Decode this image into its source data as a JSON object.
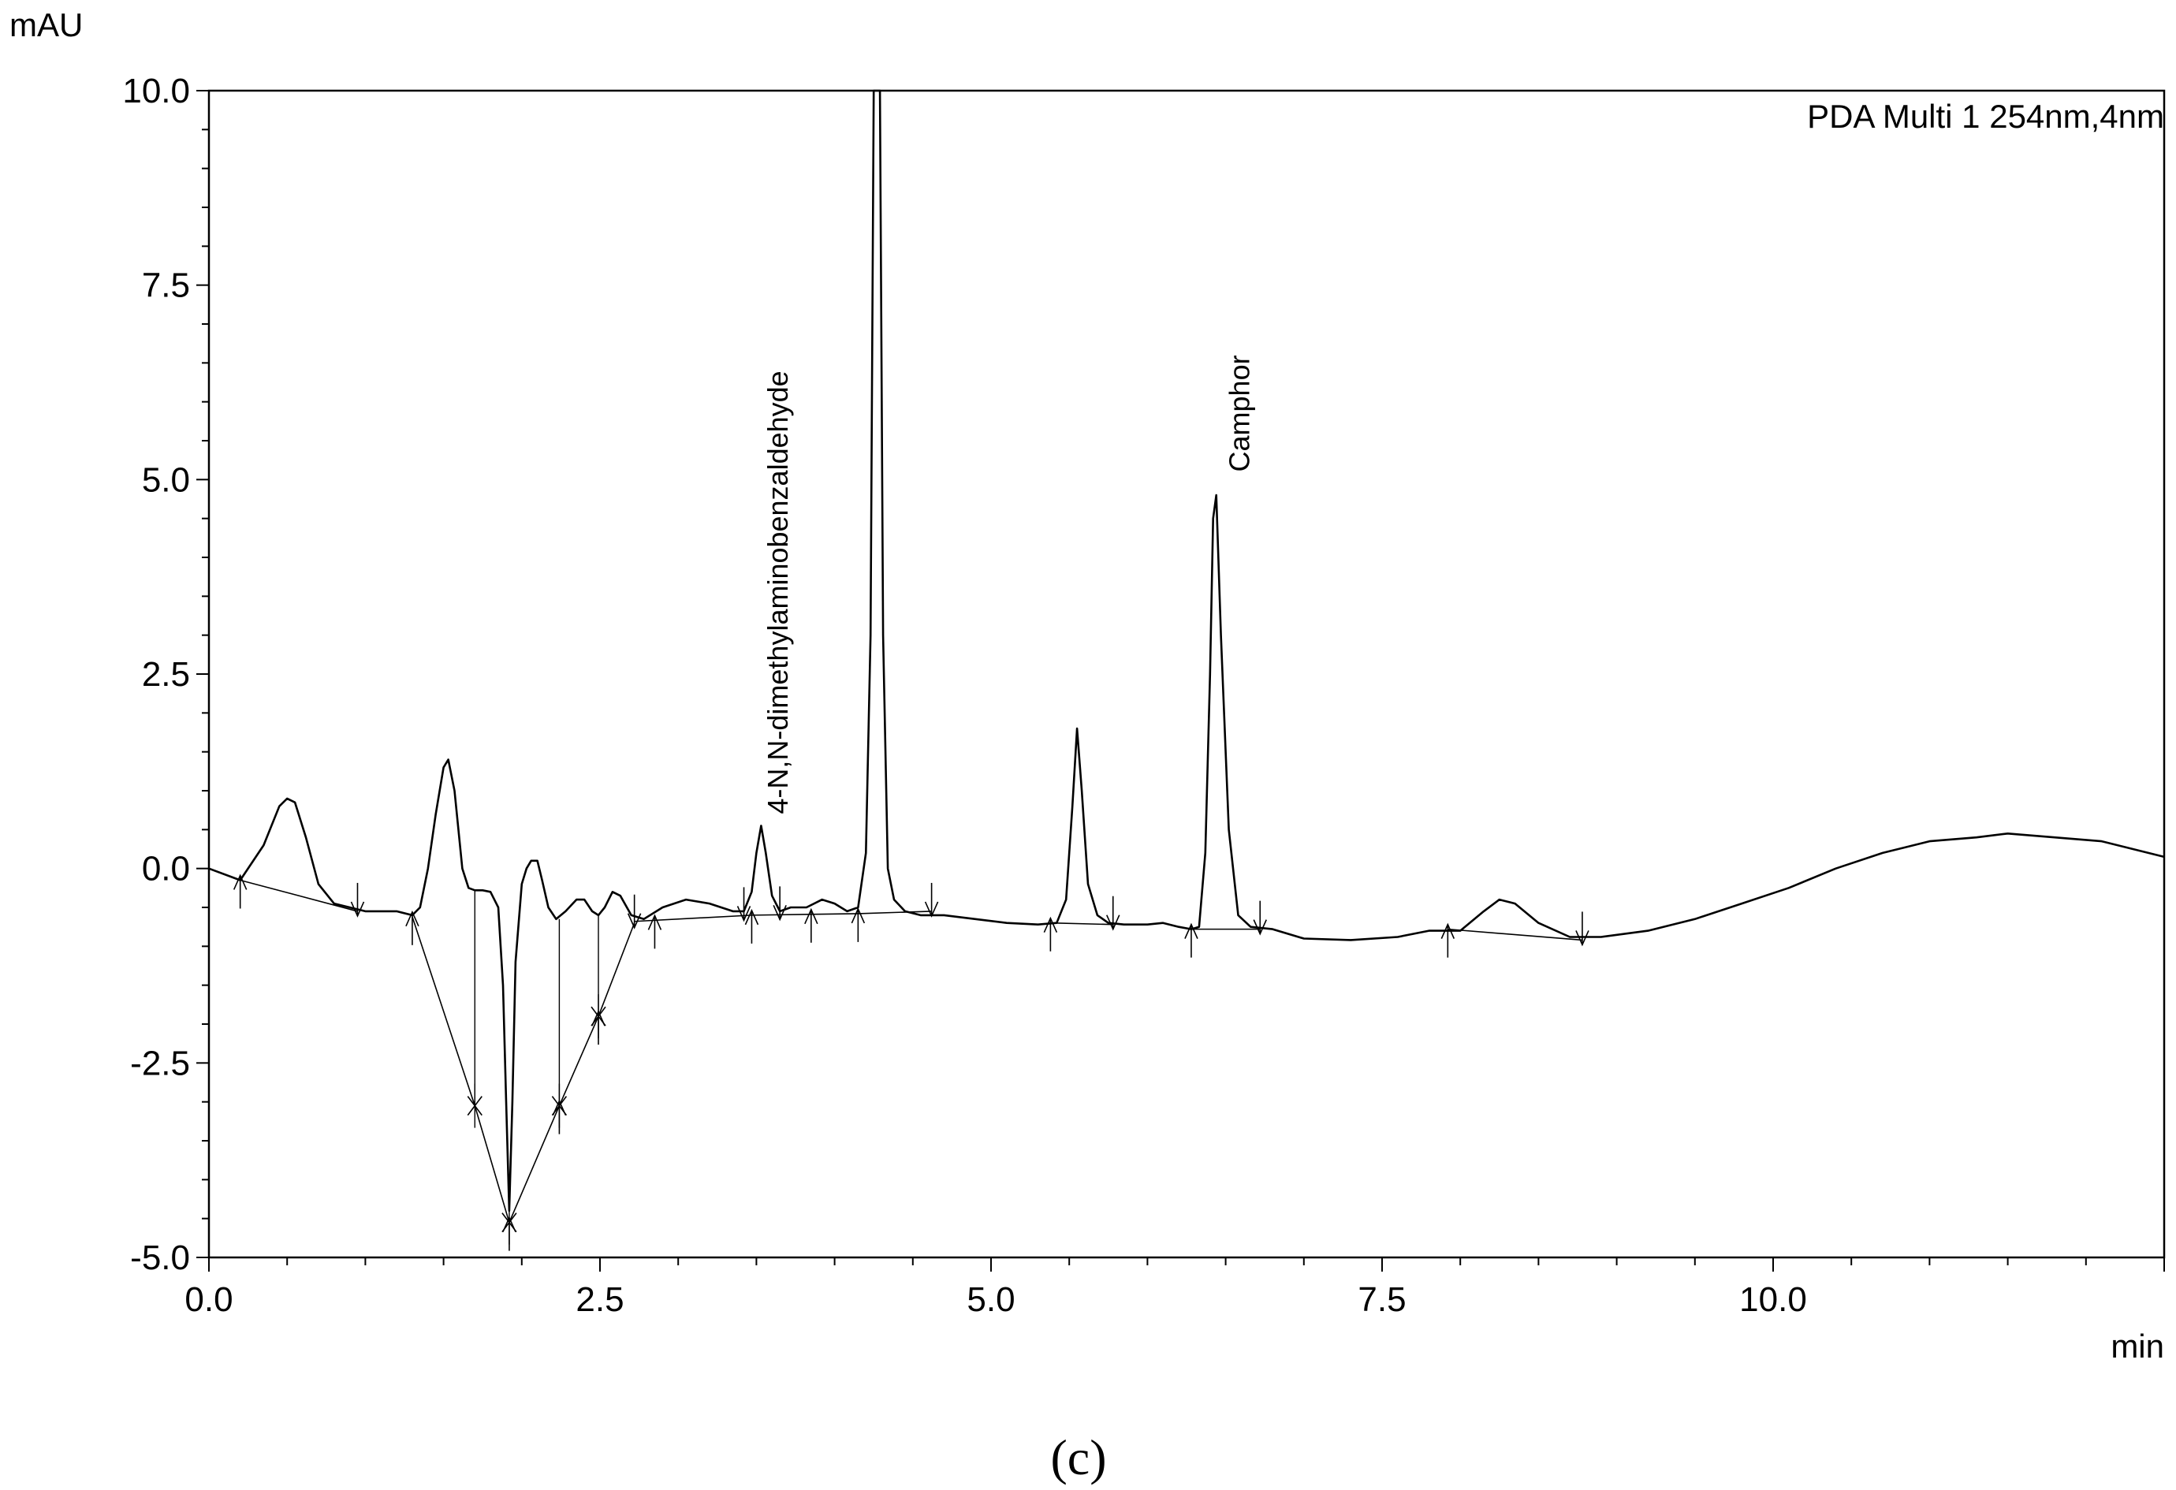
{
  "chart_data": {
    "type": "line",
    "title": "",
    "ylabel": "mAU",
    "xlabel": "min",
    "channel_label": "PDA Multi 1 254nm,4nm",
    "panel_label": "(c)",
    "xlim": [
      0.0,
      12.5
    ],
    "ylim": [
      -5.0,
      10.0
    ],
    "x_ticks": [
      0.0,
      2.5,
      5.0,
      7.5,
      10.0
    ],
    "x_tick_labels": [
      "0.0",
      "2.5",
      "5.0",
      "7.5",
      "10.0"
    ],
    "y_ticks": [
      10.0,
      7.5,
      5.0,
      2.5,
      0.0,
      -2.5,
      -5.0
    ],
    "y_tick_labels": [
      "10.0",
      "7.5",
      "5.0",
      "2.5",
      "0.0",
      "-2.5",
      "-5.0"
    ],
    "grid": false,
    "series": [
      {
        "x": [
          0.0,
          0.2,
          0.35,
          0.45,
          0.5,
          0.55,
          0.62,
          0.7,
          0.8,
          0.9,
          1.0,
          1.1,
          1.2,
          1.3,
          1.35,
          1.4,
          1.45,
          1.5,
          1.53,
          1.57,
          1.62,
          1.66,
          1.7,
          1.75,
          1.8,
          1.85,
          1.88,
          1.9,
          1.92,
          1.94,
          1.96,
          2.0,
          2.03,
          2.06,
          2.1,
          2.13,
          2.17,
          2.22,
          2.28,
          2.35,
          2.4,
          2.45,
          2.49,
          2.53,
          2.58,
          2.63,
          2.7,
          2.78,
          2.9,
          3.05,
          3.2,
          3.35,
          3.42,
          3.47,
          3.5,
          3.53,
          3.56,
          3.6,
          3.65,
          3.72,
          3.82,
          3.92,
          4.0,
          4.08,
          4.15,
          4.2,
          4.23,
          4.25,
          4.27,
          4.29,
          4.31,
          4.34,
          4.38,
          4.45,
          4.55,
          4.7,
          4.9,
          5.1,
          5.3,
          5.42,
          5.48,
          5.52,
          5.55,
          5.58,
          5.62,
          5.68,
          5.75,
          5.85,
          6.0,
          6.1,
          6.2,
          6.28,
          6.33,
          6.37,
          6.4,
          6.42,
          6.44,
          6.47,
          6.52,
          6.58,
          6.66,
          6.8,
          7.0,
          7.3,
          7.6,
          7.8,
          8.0,
          8.15,
          8.25,
          8.35,
          8.5,
          8.7,
          8.9,
          9.2,
          9.5,
          9.8,
          10.1,
          10.4,
          10.7,
          11.0,
          11.3,
          11.5,
          11.8,
          12.1,
          12.5
        ],
        "y": [
          0.0,
          -0.15,
          0.3,
          0.8,
          0.9,
          0.85,
          0.4,
          -0.2,
          -0.45,
          -0.5,
          -0.55,
          -0.55,
          -0.55,
          -0.6,
          -0.5,
          0.0,
          0.7,
          1.3,
          1.4,
          1.0,
          0.0,
          -0.25,
          -0.28,
          -0.28,
          -0.3,
          -0.5,
          -1.5,
          -3.0,
          -4.4,
          -3.0,
          -1.2,
          -0.2,
          0.0,
          0.1,
          0.1,
          -0.15,
          -0.5,
          -0.65,
          -0.55,
          -0.4,
          -0.4,
          -0.55,
          -0.6,
          -0.5,
          -0.3,
          -0.35,
          -0.6,
          -0.65,
          -0.5,
          -0.4,
          -0.45,
          -0.55,
          -0.55,
          -0.3,
          0.2,
          0.55,
          0.2,
          -0.35,
          -0.55,
          -0.5,
          -0.5,
          -0.4,
          -0.45,
          -0.55,
          -0.5,
          0.2,
          3.0,
          10.0,
          10.0,
          10.0,
          3.0,
          0.0,
          -0.4,
          -0.55,
          -0.6,
          -0.6,
          -0.65,
          -0.7,
          -0.72,
          -0.7,
          -0.4,
          0.8,
          1.8,
          1.0,
          -0.2,
          -0.6,
          -0.7,
          -0.72,
          -0.72,
          -0.7,
          -0.75,
          -0.78,
          -0.75,
          0.2,
          2.5,
          4.5,
          4.8,
          3.0,
          0.5,
          -0.6,
          -0.75,
          -0.78,
          -0.9,
          -0.92,
          -0.88,
          -0.8,
          -0.8,
          -0.55,
          -0.4,
          -0.45,
          -0.7,
          -0.88,
          -0.88,
          -0.8,
          -0.65,
          -0.45,
          -0.25,
          0.0,
          0.2,
          0.35,
          0.4,
          0.45,
          0.4,
          0.35,
          0.15
        ]
      }
    ],
    "baseline_segments": [
      [
        [
          0.2,
          -0.15
        ],
        [
          0.95,
          -0.55
        ]
      ],
      [
        [
          1.3,
          -0.62
        ],
        [
          1.7,
          -3.05
        ]
      ],
      [
        [
          1.7,
          -3.05
        ],
        [
          1.92,
          -4.55
        ]
      ],
      [
        [
          1.92,
          -4.55
        ],
        [
          2.24,
          -3.05
        ]
      ],
      [
        [
          2.24,
          -3.05
        ],
        [
          2.49,
          -1.9
        ]
      ],
      [
        [
          2.49,
          -1.9
        ],
        [
          2.72,
          -0.7
        ]
      ],
      [
        [
          2.72,
          -0.68
        ],
        [
          3.47,
          -0.6
        ]
      ],
      [
        [
          3.47,
          -0.6
        ],
        [
          4.15,
          -0.58
        ]
      ],
      [
        [
          4.15,
          -0.58
        ],
        [
          4.62,
          -0.55
        ]
      ],
      [
        [
          5.38,
          -0.7
        ],
        [
          5.78,
          -0.72
        ]
      ],
      [
        [
          6.28,
          -0.78
        ],
        [
          6.72,
          -0.78
        ]
      ],
      [
        [
          7.92,
          -0.78
        ],
        [
          8.78,
          -0.92
        ]
      ]
    ],
    "drop_lines": [
      [
        1.7,
        -0.28,
        -3.05
      ],
      [
        2.24,
        -0.65,
        -3.05
      ],
      [
        2.49,
        -0.6,
        -1.9
      ]
    ],
    "up_markers": [
      0.2,
      1.3,
      1.92,
      2.24,
      2.49,
      2.85,
      3.47,
      3.85,
      4.15,
      5.38,
      6.28,
      7.92
    ],
    "down_markers": [
      0.95,
      2.72,
      3.42,
      3.65,
      4.62,
      5.78,
      6.72,
      8.78
    ],
    "cross_markers": [
      [
        1.7,
        -3.05
      ],
      [
        1.92,
        -4.55
      ],
      [
        2.24,
        -3.05
      ],
      [
        2.49,
        -1.9
      ]
    ],
    "peak_labels": [
      {
        "text": "4-N,N-dimethylaminobenzaldehyde",
        "x": 3.7,
        "y": 0.7
      },
      {
        "text": "Camphor",
        "x": 6.65,
        "y": 5.1
      }
    ]
  }
}
